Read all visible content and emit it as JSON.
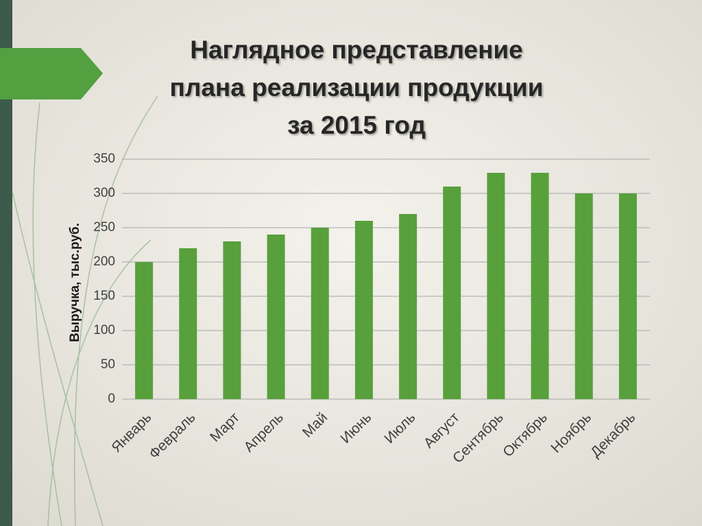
{
  "chart_data": {
    "type": "bar",
    "title": [
      "Наглядное представление",
      "плана реализации продукции",
      "за 2015 год"
    ],
    "y_label": "Выручка, тыс.руб.",
    "categories": [
      "Январь",
      "Февраль",
      "Март",
      "Апрель",
      "Май",
      "Июнь",
      "Июль",
      "Август",
      "Сентябрь",
      "Октябрь",
      "Ноябрь",
      "Декабрь"
    ],
    "values": [
      200,
      220,
      230,
      240,
      250,
      260,
      270,
      310,
      330,
      330,
      300,
      300
    ],
    "color": "#58a03c",
    "ylim": [
      0,
      350
    ],
    "yticks": [
      0,
      50,
      100,
      150,
      200,
      250,
      300,
      350
    ],
    "grid": true
  }
}
